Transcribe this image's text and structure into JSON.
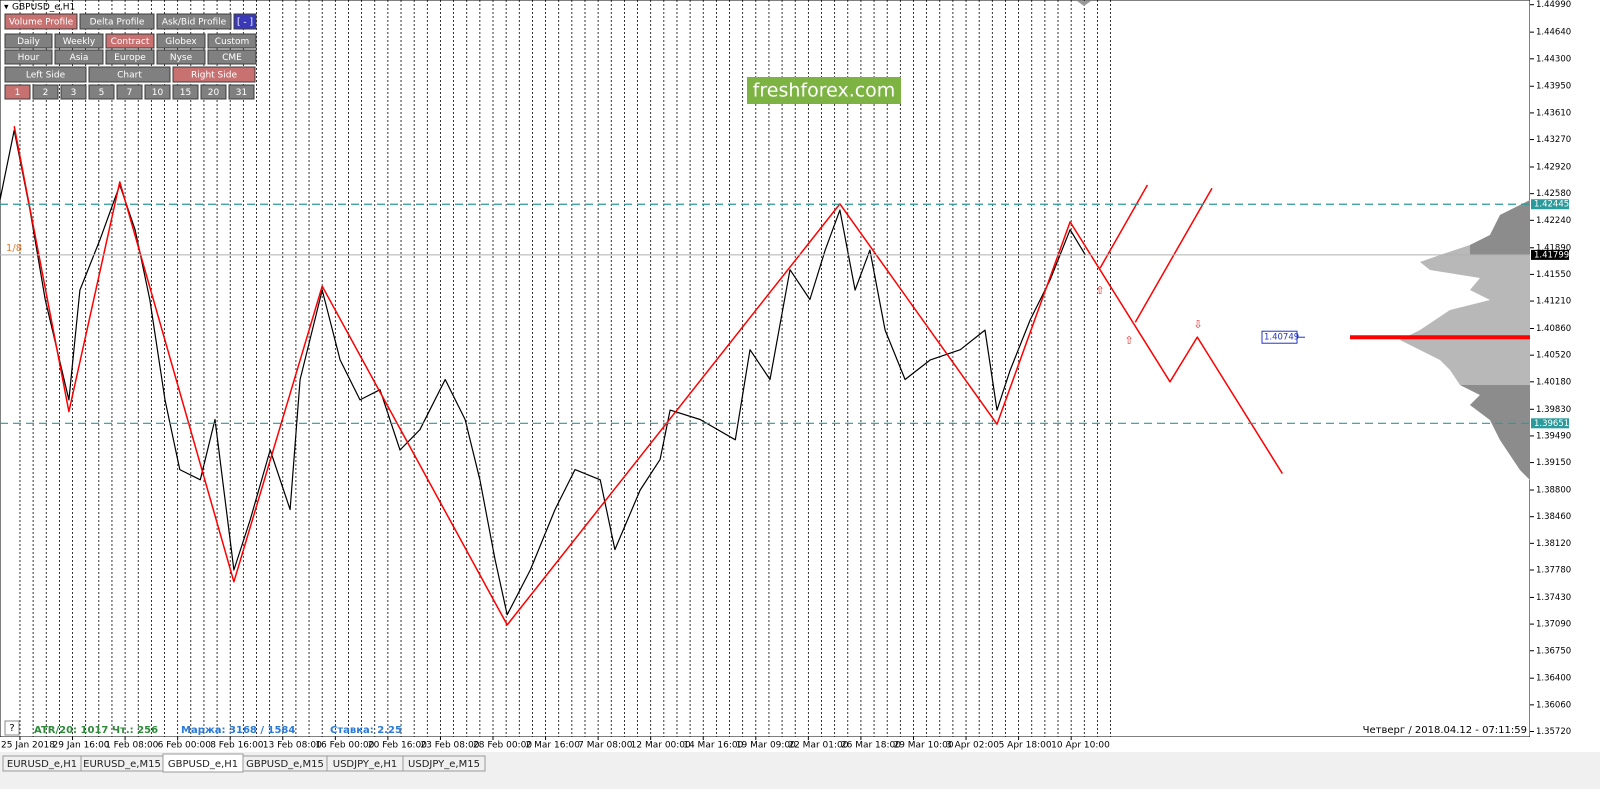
{
  "header": {
    "title": "GBPUSD_e,H1"
  },
  "buttons": [
    [
      {
        "label": "Volume Profile",
        "active": true
      },
      {
        "label": "Delta Profile",
        "active": false
      },
      {
        "label": "Ask/Bid Profile",
        "active": false
      },
      {
        "label": "[ - ]",
        "active": false
      }
    ],
    [
      {
        "label": "Daily",
        "active": false
      },
      {
        "label": "Weekly",
        "active": false
      },
      {
        "label": "Contract",
        "active": true
      },
      {
        "label": "Globex",
        "active": false
      },
      {
        "label": "Custom",
        "active": false
      }
    ],
    [
      {
        "label": "Hour",
        "active": false
      },
      {
        "label": "Asia",
        "active": false
      },
      {
        "label": "Europe",
        "active": false
      },
      {
        "label": "Nyse",
        "active": false
      },
      {
        "label": "CME",
        "active": false
      }
    ],
    [
      {
        "label": "Left Side",
        "active": false
      },
      {
        "label": "Chart",
        "active": false
      },
      {
        "label": "Right Side",
        "active": true
      }
    ],
    [
      {
        "label": "1",
        "active": true
      },
      {
        "label": "2",
        "active": false
      },
      {
        "label": "3",
        "active": false
      },
      {
        "label": "5",
        "active": false
      },
      {
        "label": "7",
        "active": false
      },
      {
        "label": "10",
        "active": false
      },
      {
        "label": "15",
        "active": false
      },
      {
        "label": "20",
        "active": false
      },
      {
        "label": "31",
        "active": false
      }
    ]
  ],
  "watermark": "freshforex.com",
  "fib_label": "1/8",
  "chart": {
    "type": "line",
    "xlim": [
      -0.38,
      28.73
    ],
    "ylim": [
      1.3565,
      1.4505
    ],
    "xticks": [
      {
        "value": 0,
        "label": "25 Jan 2018"
      },
      {
        "value": 1,
        "label": "29 Jan 16:00"
      },
      {
        "value": 2,
        "label": "1 Feb 08:00"
      },
      {
        "value": 3,
        "label": "6 Feb 00:00"
      },
      {
        "value": 4,
        "label": "8 Feb 16:00"
      },
      {
        "value": 5,
        "label": "13 Feb 08:00"
      },
      {
        "value": 6,
        "label": "16 Feb 00:00"
      },
      {
        "value": 7,
        "label": "20 Feb 16:00"
      },
      {
        "value": 8,
        "label": "23 Feb 08:00"
      },
      {
        "value": 9,
        "label": "28 Feb 00:00"
      },
      {
        "value": 10,
        "label": "2 Mar 16:00"
      },
      {
        "value": 11,
        "label": "7 Mar 08:00"
      },
      {
        "value": 12,
        "label": "12 Mar 00:00"
      },
      {
        "value": 13,
        "label": "14 Mar 16:00"
      },
      {
        "value": 14,
        "label": "19 Mar 09:00"
      },
      {
        "value": 15,
        "label": "22 Mar 01:00"
      },
      {
        "value": 16,
        "label": "26 Mar 18:00"
      },
      {
        "value": 17,
        "label": "29 Mar 10:00"
      },
      {
        "value": 18,
        "label": "3 Apr 02:00"
      },
      {
        "value": 19,
        "label": "5 Apr 18:00"
      },
      {
        "value": 20,
        "label": "10 Apr 10:00"
      }
    ],
    "yticks": [
      {
        "value": 1.4499,
        "label": "1.44990"
      },
      {
        "value": 1.4464,
        "label": "1.44640"
      },
      {
        "value": 1.443,
        "label": "1.44300"
      },
      {
        "value": 1.4395,
        "label": "1.43950"
      },
      {
        "value": 1.4361,
        "label": "1.43610"
      },
      {
        "value": 1.4327,
        "label": "1.43270"
      },
      {
        "value": 1.4292,
        "label": "1.42920"
      },
      {
        "value": 1.4258,
        "label": "1.42580"
      },
      {
        "value": 1.4224,
        "label": "1.42240"
      },
      {
        "value": 1.4189,
        "label": "1.41890"
      },
      {
        "value": 1.4155,
        "label": "1.41550"
      },
      {
        "value": 1.4121,
        "label": "1.41210"
      },
      {
        "value": 1.4086,
        "label": "1.40860"
      },
      {
        "value": 1.4052,
        "label": "1.40520"
      },
      {
        "value": 1.4018,
        "label": "1.40180"
      },
      {
        "value": 1.3983,
        "label": "1.39830"
      },
      {
        "value": 1.3949,
        "label": "1.39490"
      },
      {
        "value": 1.3915,
        "label": "1.39150"
      },
      {
        "value": 1.388,
        "label": "1.38800"
      },
      {
        "value": 1.3846,
        "label": "1.38460"
      },
      {
        "value": 1.3812,
        "label": "1.38120"
      },
      {
        "value": 1.3778,
        "label": "1.37780"
      },
      {
        "value": 1.3743,
        "label": "1.37430"
      },
      {
        "value": 1.3709,
        "label": "1.37090"
      },
      {
        "value": 1.3675,
        "label": "1.36750"
      },
      {
        "value": 1.364,
        "label": "1.36400"
      },
      {
        "value": 1.3606,
        "label": "1.36060"
      },
      {
        "value": 1.3572,
        "label": "1.35720"
      }
    ],
    "price": {
      "color": "#000000",
      "x": [
        -0.38,
        -0.11,
        0.19,
        0.48,
        0.93,
        1.14,
        1.52,
        1.9,
        2.19,
        2.47,
        2.76,
        3.04,
        3.43,
        3.71,
        4.07,
        4.38,
        4.76,
        5.14,
        5.33,
        5.75,
        6.09,
        6.47,
        6.85,
        7.23,
        7.61,
        8.09,
        8.47,
        8.75,
        9.04,
        9.27,
        9.71,
        10.18,
        10.56,
        11.04,
        11.32,
        11.8,
        12.18,
        12.37,
        12.94,
        13.61,
        13.89,
        14.27,
        14.65,
        15.03,
        15.32,
        15.6,
        15.89,
        16.17,
        16.46,
        16.84,
        17.32,
        17.89,
        18.36,
        18.59,
        18.84,
        19.22,
        19.6,
        19.98,
        20.27
      ],
      "values": [
        1.425,
        1.4339,
        1.4237,
        1.4123,
        1.3995,
        1.4135,
        1.4199,
        1.4269,
        1.4212,
        1.4123,
        1.3995,
        1.3906,
        1.3893,
        1.397,
        1.3778,
        1.3842,
        1.3931,
        1.3855,
        1.4021,
        1.4135,
        1.4046,
        1.3995,
        1.4008,
        1.3931,
        1.3957,
        1.4021,
        1.397,
        1.3893,
        1.3791,
        1.3721,
        1.3778,
        1.3855,
        1.3906,
        1.3893,
        1.3804,
        1.388,
        1.3919,
        1.3982,
        1.397,
        1.3944,
        1.4059,
        1.4021,
        1.4161,
        1.4123,
        1.4186,
        1.4237,
        1.4135,
        1.4186,
        1.4084,
        1.4021,
        1.4046,
        1.4059,
        1.4084,
        1.3982,
        1.4033,
        1.4097,
        1.4148,
        1.4212,
        1.418
      ]
    },
    "zigzag": {
      "color": "#ff0000",
      "x": [
        -0.11,
        0.93,
        1.9,
        4.07,
        5.75,
        9.27,
        15.6,
        18.59,
        19.98,
        21.88,
        22.4,
        24.02
      ],
      "values": [
        1.4344,
        1.398,
        1.4273,
        1.3763,
        1.414,
        1.3708,
        1.4245,
        1.3964,
        1.4222,
        1.4018,
        1.4075,
        1.3901
      ]
    },
    "projections": [
      {
        "x": [
          20.55,
          21.45
        ],
        "values": [
          1.4163,
          1.4269
        ]
      },
      {
        "x": [
          21.22,
          22.68
        ],
        "values": [
          1.4094,
          1.4265
        ]
      }
    ],
    "levels": [
      {
        "value": 1.42445,
        "label": "1.42445",
        "color": "#2a9a9a"
      },
      {
        "value": 1.39651,
        "label": "1.39651",
        "color": "#2a9a9a"
      }
    ],
    "current": {
      "value": 1.41799,
      "label": "1.41799",
      "color": "#b0b0b0"
    },
    "poc": {
      "value": 1.40749,
      "label": "1.40749",
      "color": "#ff0000"
    }
  },
  "status": {
    "help": "?",
    "atr": "ATR/20: 1017",
    "count": "Чт.: 256",
    "margin": "Маржа: 3168 / 1584",
    "rate": "Ставка: 2.25",
    "datetime": "Четверг  /  2018.04.12  -  07:11:59"
  },
  "tabs": [
    {
      "label": "EURUSD_e,H1",
      "active": false
    },
    {
      "label": "EURUSD_e,M15",
      "active": false
    },
    {
      "label": "GBPUSD_e,H1",
      "active": true
    },
    {
      "label": "GBPUSD_e,M15",
      "active": false
    },
    {
      "label": "USDJPY_e,H1",
      "active": false
    },
    {
      "label": "USDJPY_e,M15",
      "active": false
    }
  ]
}
